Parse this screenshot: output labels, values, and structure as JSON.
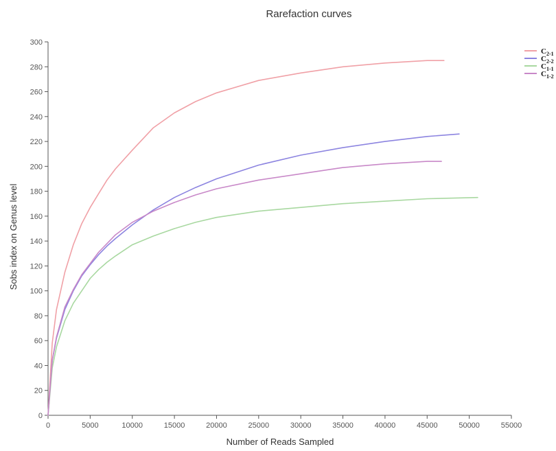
{
  "chart_data": {
    "type": "line",
    "title": "Rarefaction curves",
    "xlabel": "Number of Reads Sampled",
    "ylabel": "Sobs index on Genus level",
    "xlim": [
      0,
      55000
    ],
    "ylim": [
      0,
      300
    ],
    "xticks": [
      0,
      5000,
      10000,
      15000,
      20000,
      25000,
      30000,
      35000,
      40000,
      45000,
      50000,
      55000
    ],
    "yticks": [
      0,
      20,
      40,
      60,
      80,
      100,
      120,
      140,
      160,
      180,
      200,
      220,
      240,
      260,
      280,
      300
    ],
    "grid": false,
    "legend_position": "top-right",
    "series": [
      {
        "name": "C2-1",
        "label_main": "C",
        "label_sub": "2-1",
        "color": "#f0a0a6",
        "x": [
          0,
          500,
          1000,
          2000,
          3000,
          4000,
          5000,
          6000,
          7000,
          8000,
          10000,
          12500,
          15000,
          17500,
          20000,
          25000,
          30000,
          35000,
          40000,
          45000,
          47000
        ],
        "y": [
          0,
          58,
          85,
          115,
          137,
          154,
          167,
          178,
          189,
          198,
          213,
          231,
          243,
          252,
          259,
          269,
          275,
          280,
          283,
          285,
          285
        ]
      },
      {
        "name": "C2-2",
        "label_main": "C",
        "label_sub": "2-2",
        "color": "#8c84e0",
        "x": [
          0,
          500,
          1000,
          2000,
          3000,
          4000,
          5000,
          6000,
          7000,
          8000,
          10000,
          12500,
          15000,
          17500,
          20000,
          25000,
          30000,
          35000,
          40000,
          45000,
          48800
        ],
        "y": [
          0,
          44,
          62,
          85,
          100,
          112,
          121,
          129,
          136,
          142,
          153,
          165,
          175,
          183,
          190,
          201,
          209,
          215,
          220,
          224,
          226
        ]
      },
      {
        "name": "C1-1",
        "label_main": "C",
        "label_sub": "1-1",
        "color": "#a8d8a0",
        "x": [
          0,
          500,
          1000,
          2000,
          3000,
          4000,
          5000,
          6000,
          7000,
          8000,
          10000,
          12500,
          15000,
          17500,
          20000,
          25000,
          30000,
          35000,
          40000,
          45000,
          51000
        ],
        "y": [
          0,
          38,
          55,
          76,
          90,
          100,
          110,
          117,
          123,
          128,
          137,
          144,
          150,
          155,
          159,
          164,
          167,
          170,
          172,
          174,
          175
        ]
      },
      {
        "name": "C1-2",
        "label_main": "C",
        "label_sub": "1-2",
        "color": "#c888c8",
        "x": [
          0,
          500,
          1000,
          2000,
          3000,
          4000,
          5000,
          6000,
          7000,
          8000,
          10000,
          12500,
          15000,
          17500,
          20000,
          25000,
          30000,
          35000,
          40000,
          45000,
          46700
        ],
        "y": [
          0,
          44,
          63,
          87,
          101,
          113,
          122,
          131,
          138,
          145,
          155,
          164,
          171,
          177,
          182,
          189,
          194,
          199,
          202,
          204,
          204
        ]
      }
    ]
  }
}
